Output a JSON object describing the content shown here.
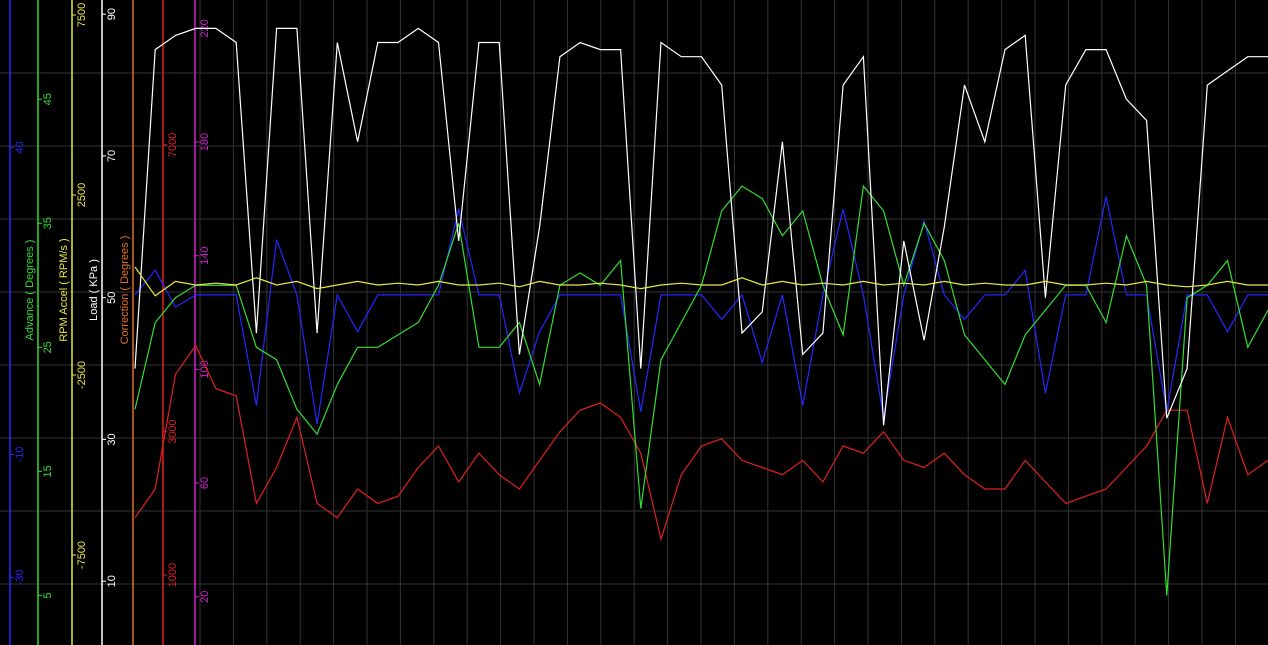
{
  "chart_data": {
    "type": "line",
    "series": [
      {
        "color": "#2626ff",
        "ylim": [
          -41,
          64
        ],
        "yticks": [
          40,
          -10,
          -30
        ],
        "values": [
          16,
          20,
          14,
          16,
          16,
          16,
          -2,
          25,
          16,
          -5,
          16,
          10,
          16,
          16,
          16,
          16,
          30,
          16,
          16,
          0,
          10,
          16,
          16,
          16,
          16,
          -3,
          16,
          16,
          16,
          12,
          16,
          5,
          16,
          -2,
          16,
          30,
          16,
          -4,
          16,
          28,
          16,
          12,
          16,
          16,
          20,
          0,
          16,
          16,
          32,
          16,
          16,
          -3,
          16,
          16,
          10,
          16,
          16
        ]
      },
      {
        "name": "Advance ( Degrees )",
        "color": "#33dd33",
        "ylim": [
          1,
          53
        ],
        "yticks": [
          45,
          35,
          25,
          15,
          5
        ],
        "values": [
          20,
          27,
          29,
          30,
          30,
          30,
          25,
          24,
          20,
          18,
          22,
          25,
          25,
          26,
          27,
          30,
          35,
          25,
          25,
          27,
          22,
          30,
          31,
          30,
          32,
          12,
          24,
          27,
          30,
          36,
          38,
          37,
          34,
          36,
          30,
          26,
          38,
          36,
          30,
          35,
          32,
          26,
          24,
          22,
          26,
          28,
          30,
          30,
          27,
          34,
          30,
          5,
          29,
          30,
          32,
          25,
          28
        ]
      },
      {
        "name": "RPM Accel ( RPM/s )",
        "color": "#e8e840",
        "ylim": [
          -10000,
          7917
        ],
        "yticks": [
          7500,
          2500,
          -2500,
          -7500
        ],
        "values": [
          500,
          -300,
          100,
          0,
          50,
          0,
          200,
          0,
          100,
          -100,
          0,
          100,
          0,
          50,
          0,
          100,
          0,
          0,
          50,
          -50,
          100,
          0,
          0,
          50,
          0,
          -100,
          0,
          50,
          0,
          0,
          200,
          0,
          100,
          0,
          50,
          0,
          100,
          0,
          50,
          0,
          100,
          0,
          50,
          0,
          0,
          100,
          0,
          0,
          50,
          0,
          100,
          0,
          -50,
          0,
          100,
          0,
          0
        ]
      },
      {
        "name": "Load ( KPa )",
        "color": "#ffffff",
        "ylim": [
          1,
          92
        ],
        "yticks": [
          90,
          70,
          50,
          30,
          10
        ],
        "values": [
          40,
          85,
          87,
          88,
          88,
          86,
          45,
          88,
          88,
          45,
          86,
          72,
          86,
          86,
          88,
          86,
          58,
          86,
          86,
          42,
          60,
          84,
          86,
          85,
          85,
          40,
          86,
          84,
          84,
          80,
          45,
          48,
          72,
          42,
          45,
          80,
          84,
          32,
          58,
          44,
          60,
          80,
          72,
          85,
          87,
          50,
          80,
          85,
          85,
          78,
          75,
          33,
          40,
          80,
          82,
          84,
          84
        ]
      },
      {
        "name": "Correction ( Degrees )",
        "color": "#e07020"
      },
      {
        "color": "#e02020",
        "ylim": [
          25,
          9020
        ],
        "yticks": [
          7000,
          3000,
          1000
        ],
        "values": [
          1800,
          2200,
          3800,
          4200,
          3600,
          3500,
          2000,
          2500,
          3200,
          2000,
          1800,
          2200,
          2000,
          2100,
          2500,
          2800,
          2300,
          2700,
          2400,
          2200,
          2600,
          3000,
          3300,
          3400,
          3200,
          2700,
          1500,
          2400,
          2800,
          2900,
          2600,
          2500,
          2400,
          2600,
          2300,
          2800,
          2700,
          3000,
          2600,
          2500,
          2700,
          2400,
          2200,
          2200,
          2600,
          2300,
          2000,
          2100,
          2200,
          2500,
          2800,
          3300,
          3300,
          2000,
          3200,
          2400,
          2600
        ]
      },
      {
        "color": "#d020d0",
        "ylim": [
          3,
          230
        ],
        "yticks": [
          220,
          180,
          140,
          100,
          60,
          20
        ]
      }
    ]
  }
}
